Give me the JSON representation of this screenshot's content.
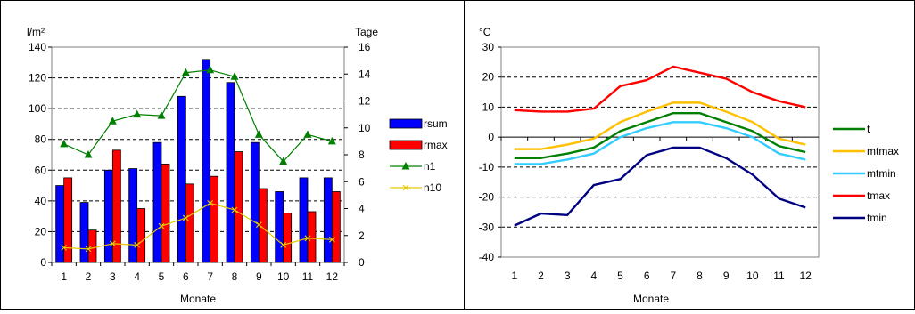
{
  "chart_data": [
    {
      "type": "bar",
      "categories": [
        "1",
        "2",
        "3",
        "4",
        "5",
        "6",
        "7",
        "8",
        "9",
        "10",
        "11",
        "12"
      ],
      "xlabel": "Monate",
      "ylabel": "l/m²",
      "y2label": "Tage",
      "ylim": [
        0,
        140
      ],
      "y2lim": [
        0,
        16
      ],
      "yticks": [
        0,
        20,
        40,
        60,
        80,
        100,
        120,
        140
      ],
      "y2ticks": [
        0,
        2,
        4,
        6,
        8,
        10,
        12,
        14,
        16
      ],
      "grid": "horizontal dashed",
      "legend_position": "right",
      "series": [
        {
          "name": "rsum",
          "type": "bar",
          "axis": "left",
          "color": "#0000ff",
          "values": [
            50,
            39,
            60,
            61,
            78,
            108,
            132,
            117,
            78,
            46,
            55,
            55
          ]
        },
        {
          "name": "rmax",
          "type": "bar",
          "axis": "left",
          "color": "#ff0000",
          "values": [
            55,
            21,
            73,
            35,
            64,
            51,
            56,
            72,
            48,
            32,
            33,
            46
          ]
        },
        {
          "name": "n1",
          "type": "line",
          "marker": "triangle",
          "axis": "right",
          "color": "#008000",
          "values": [
            8.8,
            8.0,
            10.5,
            11.0,
            10.9,
            14.1,
            14.3,
            13.8,
            9.5,
            7.5,
            9.5,
            9.0
          ]
        },
        {
          "name": "n10",
          "type": "line",
          "marker": "x",
          "axis": "right",
          "color": "#e6c800",
          "values": [
            1.1,
            1.0,
            1.4,
            1.3,
            2.7,
            3.3,
            4.4,
            3.9,
            2.8,
            1.3,
            1.8,
            1.7
          ]
        }
      ]
    },
    {
      "type": "line",
      "categories": [
        "1",
        "2",
        "3",
        "4",
        "5",
        "6",
        "7",
        "8",
        "9",
        "10",
        "11",
        "12"
      ],
      "xlabel": "Monate",
      "ylabel": "°C",
      "ylim": [
        -40,
        30
      ],
      "yticks": [
        -40,
        -30,
        -20,
        -10,
        0,
        10,
        20,
        30
      ],
      "grid": "horizontal dashed",
      "legend_position": "right",
      "series": [
        {
          "name": "t",
          "color": "#008000",
          "values": [
            -7,
            -7,
            -5.5,
            -3.5,
            2,
            5,
            8,
            8,
            5,
            2,
            -3,
            -5
          ]
        },
        {
          "name": "mtmax",
          "color": "#ffc000",
          "values": [
            -4,
            -4,
            -2.5,
            -0.5,
            5,
            8.5,
            11.5,
            11.5,
            8.5,
            5,
            -0.5,
            -2.5
          ]
        },
        {
          "name": "mtmin",
          "color": "#33ccff",
          "values": [
            -9,
            -9,
            -7.5,
            -5.5,
            0,
            3,
            5,
            5,
            3,
            0,
            -5.5,
            -7.5
          ]
        },
        {
          "name": "tmax",
          "color": "#ff0000",
          "values": [
            9,
            8.5,
            8.5,
            9.5,
            17,
            19,
            23.5,
            21.5,
            19.5,
            15,
            12,
            10
          ]
        },
        {
          "name": "tmin",
          "color": "#000080",
          "values": [
            -29.5,
            -25.5,
            -26,
            -16,
            -14,
            -6,
            -3.5,
            -3.5,
            -7,
            -12.5,
            -20.5,
            -23.5
          ]
        }
      ]
    }
  ]
}
